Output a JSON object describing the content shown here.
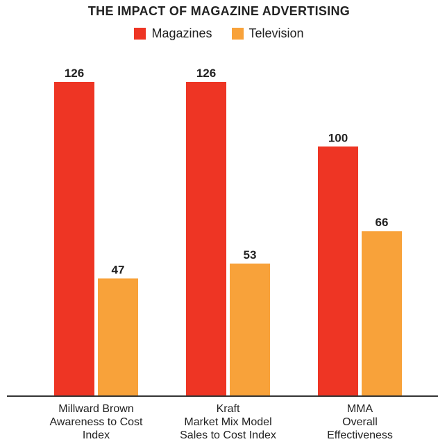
{
  "chart_data": {
    "type": "bar",
    "title": "THE IMPACT OF MAGAZINE ADVERTISING",
    "categories": [
      [
        "Millward Brown",
        "Awareness to Cost",
        "Index"
      ],
      [
        "Kraft",
        "Market Mix Model",
        "Sales to Cost Index"
      ],
      [
        "MMA",
        "Overall",
        "Effectiveness"
      ]
    ],
    "series": [
      {
        "name": "Magazines",
        "color": "#ee3524",
        "values": [
          126,
          126,
          100
        ]
      },
      {
        "name": "Television",
        "color": "#f8a23a",
        "values": [
          47,
          53,
          66
        ]
      }
    ],
    "ylim": [
      0,
      140
    ],
    "grid": false,
    "legend_position": "top-center",
    "data_labels": true
  }
}
